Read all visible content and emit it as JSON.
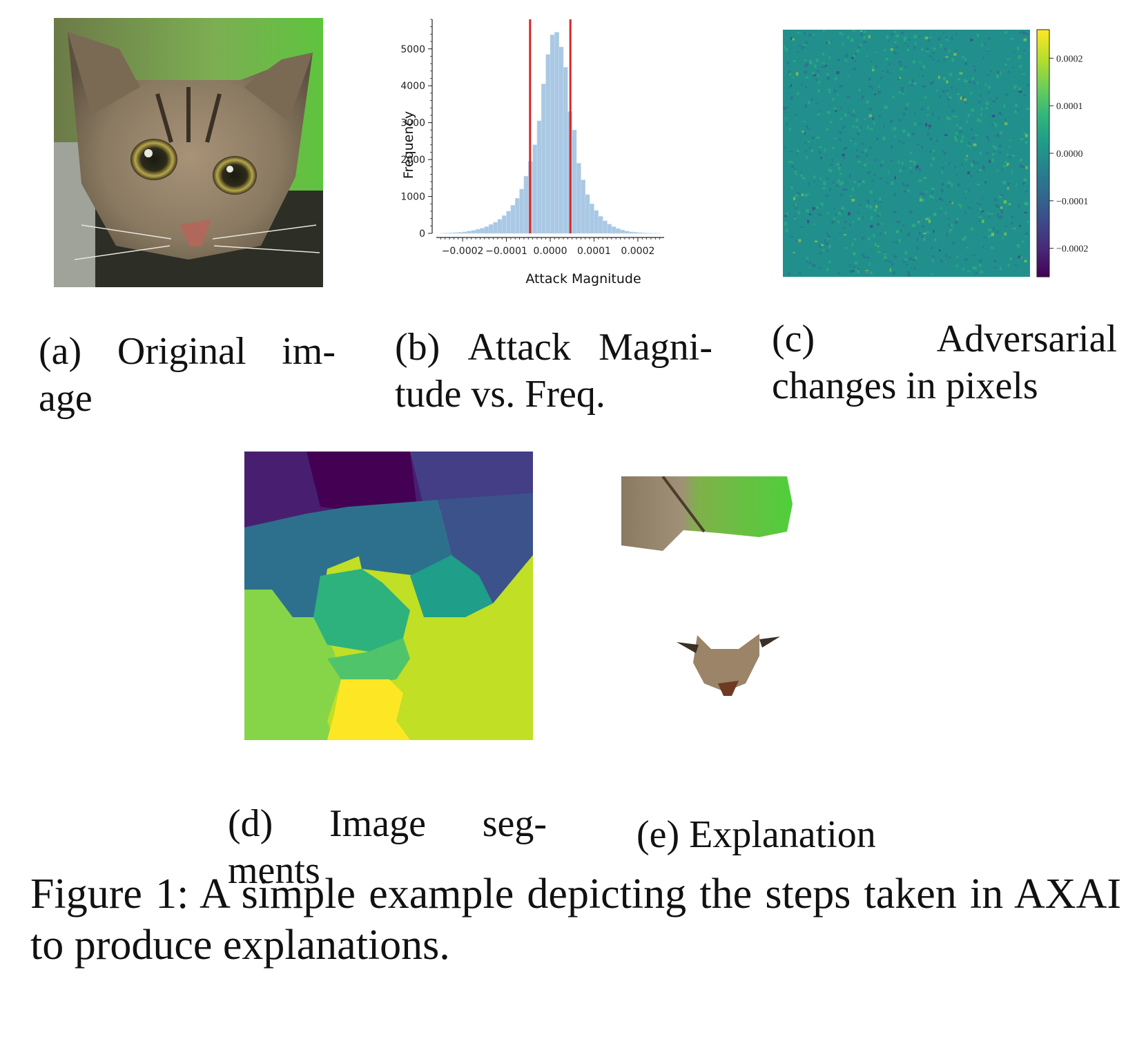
{
  "captions": {
    "a": "(a) Original image",
    "a_line1": [
      "(a)",
      "Original",
      "im-"
    ],
    "a_line2": "age",
    "b_line1": [
      "(b)",
      "Attack",
      "Magni-"
    ],
    "b_line2": "tude vs. Freq.",
    "c_line1": [
      "(c)",
      "Adversarial"
    ],
    "c_line2": "changes in pixels",
    "d_line1": [
      "(d)",
      "Image",
      "seg-"
    ],
    "d_line2": "ments",
    "e": "(e) Explanation"
  },
  "figure_caption": "Figure 1:  A simple example depicting the steps taken in AXAI to produce explanations.",
  "chart_data": [
    {
      "type": "bar",
      "subtype": "histogram",
      "xlabel": "Attack Magnitude",
      "ylabel": "Frequency",
      "x_ticks": [
        "−0.0002",
        "−0.0001",
        "0.0000",
        "0.0001",
        "0.0002"
      ],
      "x_tick_values": [
        -0.0002,
        -0.0001,
        0.0,
        0.0001,
        0.0002
      ],
      "y_ticks": [
        "0",
        "1000",
        "2000",
        "3000",
        "4000",
        "5000"
      ],
      "y_tick_values": [
        0,
        1000,
        2000,
        3000,
        4000,
        5000
      ],
      "xlim": [
        -0.00026,
        0.00026
      ],
      "ylim": [
        0,
        5800
      ],
      "bin_start": -0.00025,
      "bin_width": 1e-05,
      "values": [
        5,
        10,
        15,
        20,
        30,
        40,
        60,
        80,
        110,
        140,
        180,
        240,
        300,
        380,
        480,
        600,
        760,
        950,
        1200,
        1550,
        1950,
        2400,
        3050,
        4050,
        4850,
        5380,
        5450,
        5050,
        4500,
        3300,
        2800,
        1900,
        1450,
        1050,
        800,
        620,
        460,
        340,
        250,
        180,
        130,
        90,
        60,
        40,
        30,
        20,
        12,
        8,
        5,
        3
      ],
      "bar_color": "#a9c8e4",
      "vertical_lines": [
        -4.6e-05,
        4.6e-05
      ],
      "vertical_line_color": "#d62728"
    },
    {
      "type": "heatmap",
      "colormap": "viridis",
      "colorbar_ticks": [
        "0.0002",
        "0.0001",
        "0.0000",
        "−0.0001",
        "−0.0002"
      ],
      "colorbar_tick_values": [
        0.0002,
        0.0001,
        0.0,
        -0.0001,
        -0.0002
      ],
      "colorbar_range": [
        -0.00026,
        0.00026
      ],
      "background_value": 0.0
    }
  ],
  "colors": {
    "viridis": [
      "#440154",
      "#482878",
      "#3e4989",
      "#31688e",
      "#26828e",
      "#1f9e89",
      "#35b779",
      "#6ece58",
      "#b5de2b",
      "#fde725"
    ],
    "cat_fur": "#8a7a62",
    "green_bg": "#5dbb3a"
  }
}
